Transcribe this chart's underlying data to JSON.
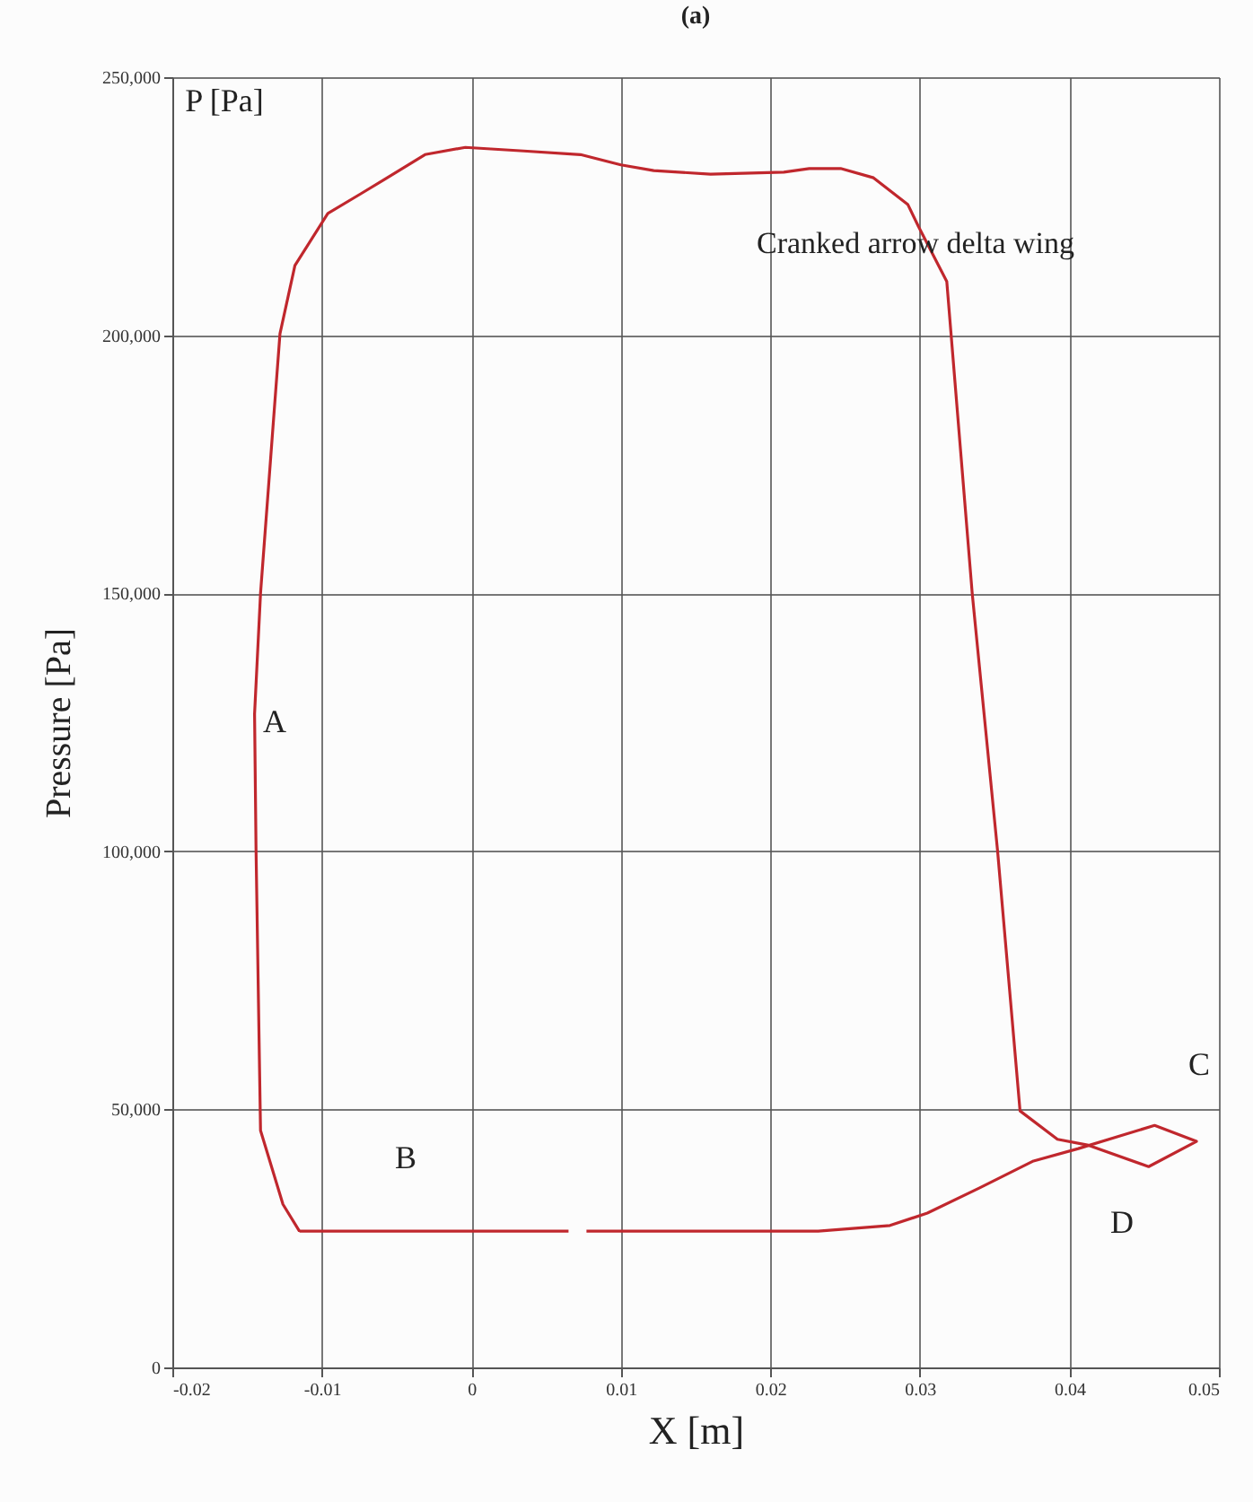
{
  "chart_data": {
    "type": "line",
    "title": "(a)",
    "xlabel": "X [m]",
    "ylabel": "Pressure [Pa]",
    "series": [
      {
        "color": "#c0272d",
        "x": [
          -0.0115,
          0.0065,
          0.0071,
          0.0077,
          0.0232,
          0.028,
          0.0305,
          0.034,
          0.0376,
          0.0406,
          0.0457,
          0.0485,
          0.0453,
          0.0412,
          0.0392,
          0.0367,
          0.0352,
          0.0335,
          0.0318,
          0.0299,
          0.0292,
          0.0269,
          0.0247,
          0.0226,
          0.0209,
          0.016,
          0.0122,
          0.01,
          0.0073,
          0.0035,
          -0.0004,
          -0.0031,
          -0.0058,
          -0.0074,
          -0.0096,
          -0.0118,
          -0.0128,
          -0.0141,
          -0.0145,
          -0.0144,
          -0.0141,
          -0.0126,
          -0.0115
        ],
        "values": [
          26400,
          26400,
          null,
          26400,
          26400,
          27500,
          29900,
          34800,
          40000,
          42400,
          46900,
          43800,
          38900,
          43100,
          44200,
          49700,
          100000,
          150000,
          210400,
          221100,
          225300,
          230500,
          232300,
          232300,
          231600,
          231200,
          231900,
          233000,
          235000,
          235700,
          236400,
          235000,
          230200,
          227400,
          223600,
          213500,
          200300,
          150000,
          126600,
          100000,
          45900,
          31600,
          26400
        ]
      }
    ],
    "xlim": [
      -0.02,
      0.05
    ],
    "xticks": [
      {
        "value": -0.02,
        "label": "-0.02"
      },
      {
        "value": -0.01,
        "label": "-0.01"
      },
      {
        "value": 0,
        "label": "0"
      },
      {
        "value": 0.01,
        "label": "0.01"
      },
      {
        "value": 0.02,
        "label": "0.02"
      },
      {
        "value": 0.03,
        "label": "0.03"
      },
      {
        "value": 0.04,
        "label": "0.04"
      },
      {
        "value": 0.05,
        "label": "0.05"
      }
    ],
    "ylim": [
      0,
      250000
    ],
    "yticks": [
      {
        "value": 0,
        "label": "0"
      },
      {
        "value": 50000,
        "label": "50,000"
      },
      {
        "value": 100000,
        "label": "100,000"
      },
      {
        "value": 150000,
        "label": "150,000"
      },
      {
        "value": 200000,
        "label": "200,000"
      },
      {
        "value": 250000,
        "label": "250,000"
      }
    ],
    "grid": true,
    "annotations": [
      "P [Pa]",
      "Cranked arrow delta wing",
      "A",
      "B",
      "C",
      "D"
    ]
  }
}
